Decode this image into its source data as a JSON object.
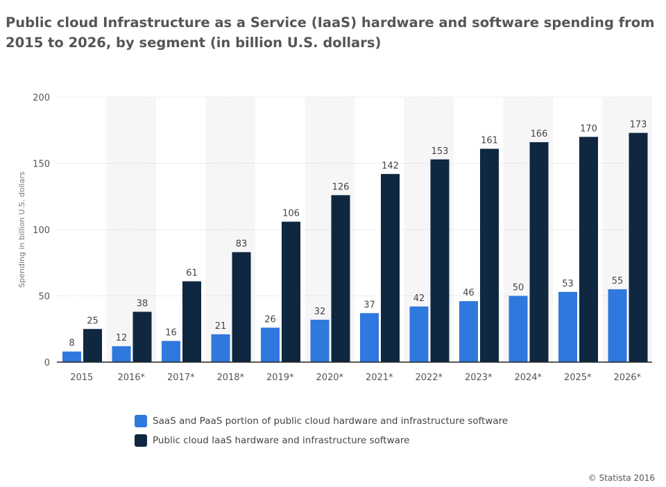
{
  "chart_data": {
    "type": "bar",
    "title": "Public cloud Infrastructure as a Service (IaaS) hardware and software spending from 2015 to 2026, by segment (in billion U.S. dollars)",
    "ylabel": "Spending in billion U.S. dollars",
    "xlabel": "",
    "ylim": [
      0,
      200
    ],
    "yticks": [
      0,
      50,
      100,
      150,
      200
    ],
    "grid": true,
    "legend_placement": "bottom",
    "categories": [
      "2015",
      "2016*",
      "2017*",
      "2018*",
      "2019*",
      "2020*",
      "2021*",
      "2022*",
      "2023*",
      "2024*",
      "2025*",
      "2026*"
    ],
    "series": [
      {
        "name": "SaaS and PaaS portion of public cloud hardware and infrastructure software",
        "color": "#2f78dd",
        "values": [
          8,
          12,
          16,
          21,
          26,
          32,
          37,
          42,
          46,
          50,
          53,
          55
        ]
      },
      {
        "name": "Public cloud IaaS hardware and infrastructure software",
        "color": "#0f2740",
        "values": [
          25,
          38,
          61,
          83,
          106,
          126,
          142,
          153,
          161,
          166,
          170,
          173
        ]
      }
    ]
  },
  "credit": "© Statista 2016"
}
